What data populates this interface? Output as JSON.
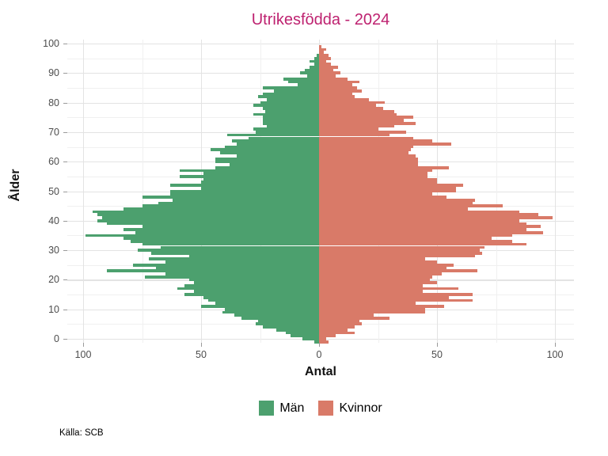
{
  "title": "Utrikesfödda - 2024",
  "source": "Källa: SCB",
  "colors": {
    "title": "#be2270",
    "men": "#4ca06e",
    "women": "#d97a68",
    "grid_major": "#e3e3e3",
    "grid_minor": "#f0f0f0",
    "tick_label": "#4d4d4d"
  },
  "axes": {
    "x_label": "Antal",
    "y_label": "Ålder",
    "y_ticks": [
      0,
      10,
      20,
      30,
      40,
      50,
      60,
      70,
      80,
      90,
      100
    ],
    "x_ticks": [
      {
        "label": "100",
        "value": -100
      },
      {
        "label": "50",
        "value": -50
      },
      {
        "label": "0",
        "value": 0
      },
      {
        "label": "50",
        "value": 50
      },
      {
        "label": "100",
        "value": 100
      }
    ]
  },
  "legend": [
    {
      "label": "Män",
      "color_key": "men"
    },
    {
      "label": "Kvinnor",
      "color_key": "women"
    }
  ],
  "chart_data": {
    "type": "bar",
    "subtype": "population-pyramid",
    "title": "Utrikesfödda - 2024",
    "xlabel": "Antal",
    "ylabel": "Ålder",
    "age_min": 0,
    "age_max": 100,
    "x_range_each_side": [
      0,
      107
    ],
    "grid": "on",
    "legend_position": "bottom",
    "series": [
      {
        "name": "Män",
        "side": "left",
        "values_by_age_0_to_100": [
          2,
          7,
          12,
          14,
          18,
          24,
          27,
          26,
          33,
          36,
          41,
          40,
          50,
          44,
          47,
          49,
          57,
          53,
          60,
          57,
          53,
          55,
          74,
          65,
          90,
          69,
          79,
          65,
          72,
          55,
          71,
          77,
          67,
          75,
          80,
          83,
          99,
          78,
          83,
          75,
          90,
          94,
          92,
          94,
          96,
          83,
          75,
          68,
          62,
          75,
          63,
          63,
          50,
          63,
          50,
          49,
          59,
          49,
          59,
          44,
          38,
          44,
          44,
          35,
          42,
          46,
          40,
          35,
          37,
          30,
          39,
          27,
          28,
          22,
          24,
          24,
          24,
          28,
          23,
          24,
          28,
          25,
          22,
          26,
          24,
          19,
          24,
          9,
          13,
          15,
          5,
          8,
          6,
          4,
          2,
          4,
          2,
          1,
          0,
          0,
          0
        ]
      },
      {
        "name": "Kvinnor",
        "side": "right",
        "values_by_age_0_to_100": [
          4,
          3,
          7,
          15,
          12,
          15,
          18,
          17,
          30,
          23,
          45,
          45,
          53,
          41,
          65,
          55,
          65,
          44,
          59,
          44,
          50,
          47,
          48,
          52,
          67,
          54,
          57,
          50,
          45,
          66,
          69,
          68,
          70,
          88,
          82,
          73,
          82,
          95,
          88,
          94,
          88,
          85,
          99,
          93,
          85,
          63,
          78,
          65,
          66,
          54,
          48,
          58,
          58,
          61,
          50,
          50,
          46,
          46,
          48,
          55,
          42,
          42,
          42,
          41,
          38,
          39,
          40,
          56,
          48,
          40,
          30,
          37,
          25,
          32,
          41,
          36,
          40,
          33,
          32,
          27,
          24,
          28,
          21,
          15,
          14,
          18,
          16,
          14,
          17,
          12,
          7,
          9,
          6,
          8,
          5,
          3,
          5,
          4,
          2,
          3,
          1
        ]
      }
    ]
  }
}
